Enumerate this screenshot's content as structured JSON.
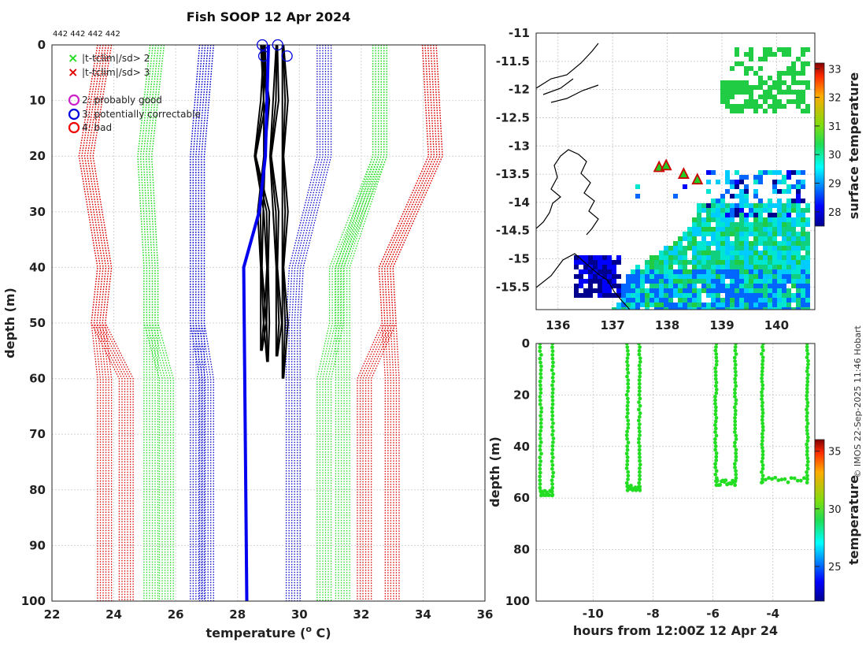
{
  "chart_data": [
    {
      "type": "line",
      "title": "Fish SOOP 12 Apr 2024",
      "id_label": "442 442 442 442",
      "xlabel": "temperature (",
      "xlabel_sup": "o",
      "xlabel_unit": " C)",
      "ylabel": "depth (m)",
      "xlim": [
        22,
        36
      ],
      "ylim": [
        0,
        100
      ],
      "xticks": [
        "22",
        "24",
        "26",
        "28",
        "30",
        "32",
        "34",
        "36"
      ],
      "yticks": [
        "0",
        "10",
        "20",
        "30",
        "40",
        "50",
        "60",
        "70",
        "80",
        "90",
        "100"
      ],
      "legend": {
        "markers": [
          {
            "label": "|t-tclim|/sd> 2",
            "symbol": "x",
            "color": "#22dd22"
          },
          {
            "label": "|t-tclim|/sd> 3",
            "symbol": "x",
            "color": "#dd0000"
          }
        ],
        "flags": [
          {
            "label": "2: probably good",
            "symbol": "o",
            "color": "#cc22cc"
          },
          {
            "label": "3: potentially correctable",
            "symbol": "o",
            "color": "#0000dd"
          },
          {
            "label": "4: bad",
            "symbol": "o",
            "color": "#ee0000"
          }
        ]
      },
      "climatology_depths": [
        0,
        20,
        40,
        50,
        60,
        100
      ],
      "series": [
        {
          "name": "clim -3sd",
          "color": "#dd0000",
          "values": [
            23.7,
            23.1,
            23.7,
            23.5,
            23.7,
            23.7
          ]
        },
        {
          "name": "clim -3sd deep",
          "color": "#dd0000",
          "values": [
            23.7,
            23.1,
            23.7,
            23.5,
            24.4,
            24.4
          ]
        },
        {
          "name": "clim -2sd",
          "color": "#22dd22",
          "values": [
            25.4,
            25.0,
            25.2,
            25.2,
            25.2,
            25.2
          ]
        },
        {
          "name": "clim -2sd deep",
          "color": "#22dd22",
          "values": [
            25.4,
            25.0,
            25.2,
            25.2,
            25.7,
            25.7
          ]
        },
        {
          "name": "clim -1sd",
          "color": "#0000cc",
          "values": [
            27.0,
            26.7,
            26.7,
            26.7,
            26.7,
            26.7
          ]
        },
        {
          "name": "clim -1sd deep",
          "color": "#0000cc",
          "values": [
            27.0,
            26.7,
            26.7,
            26.7,
            27.0,
            27.0
          ]
        },
        {
          "name": "clim +1sd",
          "color": "#0000cc",
          "values": [
            30.8,
            30.8,
            29.9,
            29.8,
            29.8,
            29.8
          ]
        },
        {
          "name": "clim +2sd",
          "color": "#22dd22",
          "values": [
            32.6,
            32.6,
            31.2,
            31.2,
            30.8,
            30.8
          ]
        },
        {
          "name": "clim +2sd wide",
          "color": "#22dd22",
          "values": [
            32.6,
            32.6,
            31.4,
            31.4,
            31.4,
            31.4
          ]
        },
        {
          "name": "clim +3sd",
          "color": "#dd0000",
          "values": [
            34.2,
            34.4,
            32.8,
            32.9,
            32.1,
            32.1
          ]
        },
        {
          "name": "clim +3sd wide",
          "color": "#dd0000",
          "values": [
            34.2,
            34.4,
            32.8,
            32.9,
            33.0,
            33.0
          ]
        }
      ],
      "profiles": [
        {
          "name": "profile 1",
          "color": "#000000",
          "depths": [
            0,
            10,
            20,
            30,
            40,
            50,
            55
          ],
          "values": [
            28.8,
            28.9,
            28.9,
            28.7,
            28.8,
            28.8,
            28.8
          ]
        },
        {
          "name": "profile 2",
          "color": "#000000",
          "depths": [
            0,
            10,
            20,
            30,
            40,
            50,
            57
          ],
          "values": [
            28.9,
            28.8,
            28.6,
            28.9,
            29.0,
            28.9,
            29.0
          ]
        },
        {
          "name": "profile 3",
          "color": "#000000",
          "depths": [
            0,
            10,
            20,
            30,
            40,
            50,
            56
          ],
          "values": [
            29.3,
            29.2,
            29.1,
            29.2,
            29.3,
            29.3,
            29.3
          ]
        },
        {
          "name": "profile 4",
          "color": "#000000",
          "depths": [
            0,
            10,
            20,
            30,
            40,
            50,
            60
          ],
          "values": [
            29.5,
            29.5,
            29.5,
            29.5,
            29.5,
            29.5,
            29.5
          ]
        },
        {
          "name": "flagged blue",
          "color": "#0000ee",
          "depths": [
            0,
            20,
            30,
            40,
            100
          ],
          "values": [
            29.0,
            28.9,
            28.7,
            28.2,
            28.3
          ]
        }
      ],
      "flag_circles": [
        {
          "x": 28.8,
          "y": 0,
          "color": "#0000dd"
        },
        {
          "x": 28.85,
          "y": 2,
          "color": "#0000dd"
        },
        {
          "x": 29.3,
          "y": 0,
          "color": "#0000dd"
        },
        {
          "x": 29.6,
          "y": 2,
          "color": "#0000dd"
        }
      ]
    },
    {
      "type": "heatmap",
      "title": "",
      "xlim": [
        135.6,
        140.7
      ],
      "ylim": [
        -15.9,
        -11
      ],
      "xticks": [
        "136",
        "137",
        "138",
        "139",
        "140"
      ],
      "yticks": [
        "-11",
        "-11.5",
        "-12",
        "-12.5",
        "-13",
        "-13.5",
        "-14",
        "-14.5",
        "-15",
        "-15.5"
      ],
      "colorbar_label": "surface temperature",
      "colorbar_ticks": [
        "33",
        "32",
        "31",
        "30",
        "29",
        "28"
      ],
      "colorbar_range": [
        27.5,
        33.2
      ],
      "stations": [
        {
          "lon": 137.85,
          "lat": -13.38
        },
        {
          "lon": 137.98,
          "lat": -13.35
        },
        {
          "lon": 138.3,
          "lat": -13.5
        },
        {
          "lon": 138.55,
          "lat": -13.6
        }
      ]
    },
    {
      "type": "scatter",
      "xlabel": "hours from 12:00Z 12 Apr 24",
      "ylabel": "depth (m)",
      "xlim": [
        -11.9,
        -2.6
      ],
      "ylim": [
        0,
        100
      ],
      "xticks": [
        "-10",
        "-8",
        "-6",
        "-4"
      ],
      "yticks": [
        "0",
        "20",
        "40",
        "60",
        "80",
        "100"
      ],
      "colorbar_label": "temperature",
      "colorbar_ticks": [
        "35",
        "30",
        "25"
      ],
      "colorbar_range": [
        22,
        36
      ],
      "point_color": "#22dd22",
      "casts": [
        {
          "down_hour": -11.75,
          "up_hour": -11.35,
          "max_depth": 59
        },
        {
          "down_hour": -8.85,
          "up_hour": -8.45,
          "max_depth": 57
        },
        {
          "down_hour": -5.9,
          "up_hour": -5.25,
          "max_depth": 55
        },
        {
          "down_hour": -4.35,
          "up_hour": -2.85,
          "max_depth": 54
        }
      ]
    }
  ],
  "credit": "© IMOS 22-Sep-2025 11:46 Hobart"
}
